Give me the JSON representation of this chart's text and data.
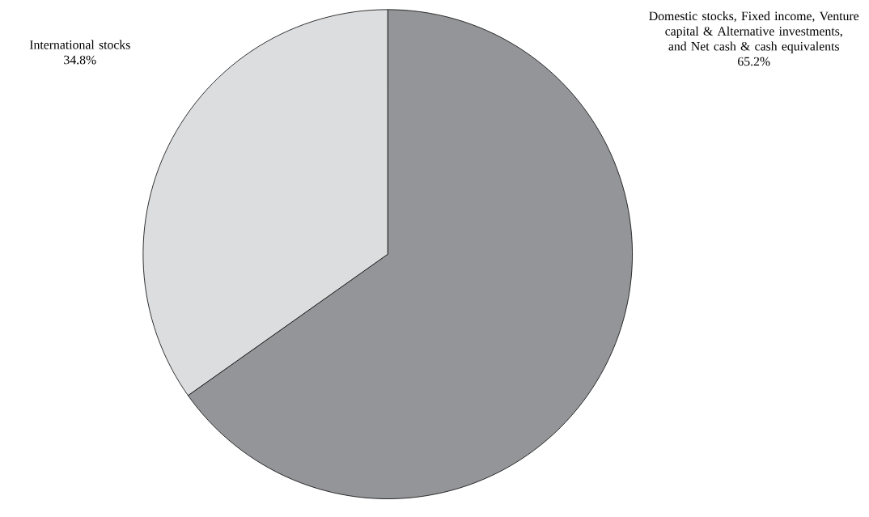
{
  "chart_data": {
    "type": "pie",
    "categories": [
      "Domestic stocks, Fixed income, Venture capital & Alternative investments, and Net cash & cash equivalents",
      "International stocks"
    ],
    "values": [
      65.2,
      34.8
    ],
    "value_labels": [
      "65.2%",
      "34.8%"
    ],
    "colors": [
      "#939598",
      "#dcdddf"
    ]
  }
}
